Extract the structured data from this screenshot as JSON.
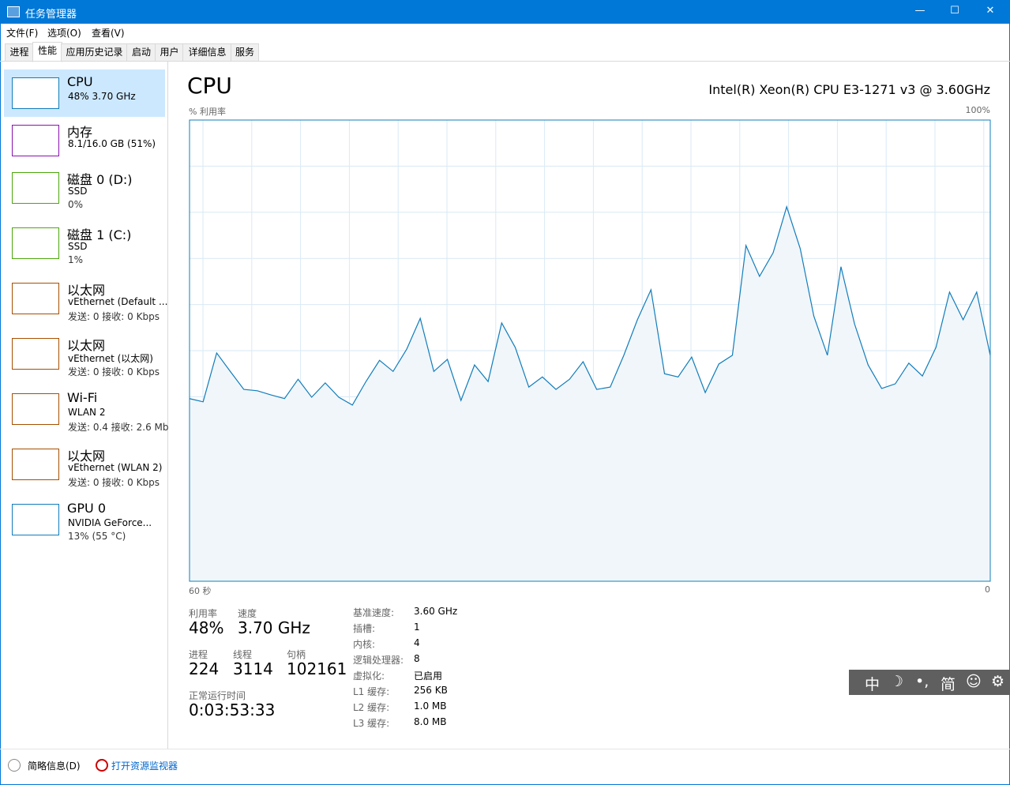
{
  "window": {
    "title": "任务管理器",
    "controls": [
      "—",
      "☐",
      "✕"
    ]
  },
  "menu": [
    "文件(F)",
    "选项(O)",
    "查看(V)"
  ],
  "tabs": [
    "进程",
    "性能",
    "应用历史记录",
    "启动",
    "用户",
    "详细信息",
    "服务"
  ],
  "sidebar": [
    {
      "name": "CPU",
      "lines": [
        "48% 3.70 GHz"
      ]
    },
    {
      "name": "内存",
      "lines": [
        "8.1/16.0 GB (51%)"
      ]
    },
    {
      "name": "磁盘 0 (D:)",
      "lines": [
        "SSD",
        "0%"
      ]
    },
    {
      "name": "磁盘 1 (C:)",
      "lines": [
        "SSD",
        "1%"
      ]
    },
    {
      "name": "以太网",
      "lines": [
        "vEthernet (Default ...",
        "发送: 0 接收: 0 Kbps"
      ]
    },
    {
      "name": "以太网",
      "lines": [
        "vEthernet (以太网)",
        "发送: 0 接收: 0 Kbps"
      ]
    },
    {
      "name": "Wi-Fi",
      "lines": [
        "WLAN 2",
        "发送: 0.4 接收: 2.6 Mb"
      ]
    },
    {
      "name": "以太网",
      "lines": [
        "vEthernet (WLAN 2)",
        "发送: 0 接收: 0 Kbps"
      ]
    },
    {
      "name": "GPU 0",
      "lines": [
        "NVIDIA GeForce...",
        "13% (55 °C)"
      ]
    }
  ],
  "detail": {
    "title": "CPU",
    "model": "Intel(R) Xeon(R) CPU E3-1271 v3 @ 3.60GHz",
    "graph": {
      "y_label": "% 利用率",
      "ymax": {
        "value": 100,
        "label": "100%"
      },
      "x_left_label": "60 秒",
      "x_right_label": "0",
      "values": [
        39.6,
        38.9,
        49.5,
        45.5,
        41.6,
        41.3,
        40.4,
        39.6,
        43.8,
        39.9,
        43,
        39.9,
        38.2,
        43.3,
        47.9,
        45.5,
        50.3,
        57,
        45.5,
        48.1,
        39.2,
        46.9,
        43.3,
        56,
        50.7,
        42.1,
        44.3,
        41.6,
        43.8,
        47.6,
        41.6,
        42.1,
        49,
        56.7,
        63.2,
        45,
        44.3,
        48.6,
        40.9,
        47.1,
        49,
        72.8,
        66.1,
        71.2,
        81.2,
        72.1,
        57.5,
        49,
        68.2,
        55.8,
        46.9,
        41.8,
        42.8,
        47.3,
        44.5,
        50.7,
        62.7,
        56.7,
        62.7,
        49
      ]
    },
    "stats": [
      {
        "label": "利用率",
        "value": "48%"
      },
      {
        "label": "速度",
        "value": "3.70 GHz"
      },
      {
        "label": "进程",
        "value": "224"
      },
      {
        "label": "线程",
        "value": "3114"
      },
      {
        "label": "句柄",
        "value": "102161"
      },
      {
        "label": "正常运行时间",
        "value": "0:03:53:33"
      }
    ],
    "specs": [
      [
        "基准速度:",
        "3.60 GHz"
      ],
      [
        "插槽:",
        "1"
      ],
      [
        "内核:",
        "4"
      ],
      [
        "逻辑处理器:",
        "8"
      ],
      [
        "虚拟化:",
        "已启用"
      ],
      [
        "L1 缓存:",
        "256 KB"
      ],
      [
        "L2 缓存:",
        "1.0 MB"
      ],
      [
        "L3 缓存:",
        "8.0 MB"
      ]
    ]
  },
  "ime": [
    "中",
    "☽",
    "•,",
    "简",
    "☺",
    "⚙"
  ],
  "footer": {
    "brief": "简略信息(D)",
    "monitor": "打开资源监视器"
  }
}
